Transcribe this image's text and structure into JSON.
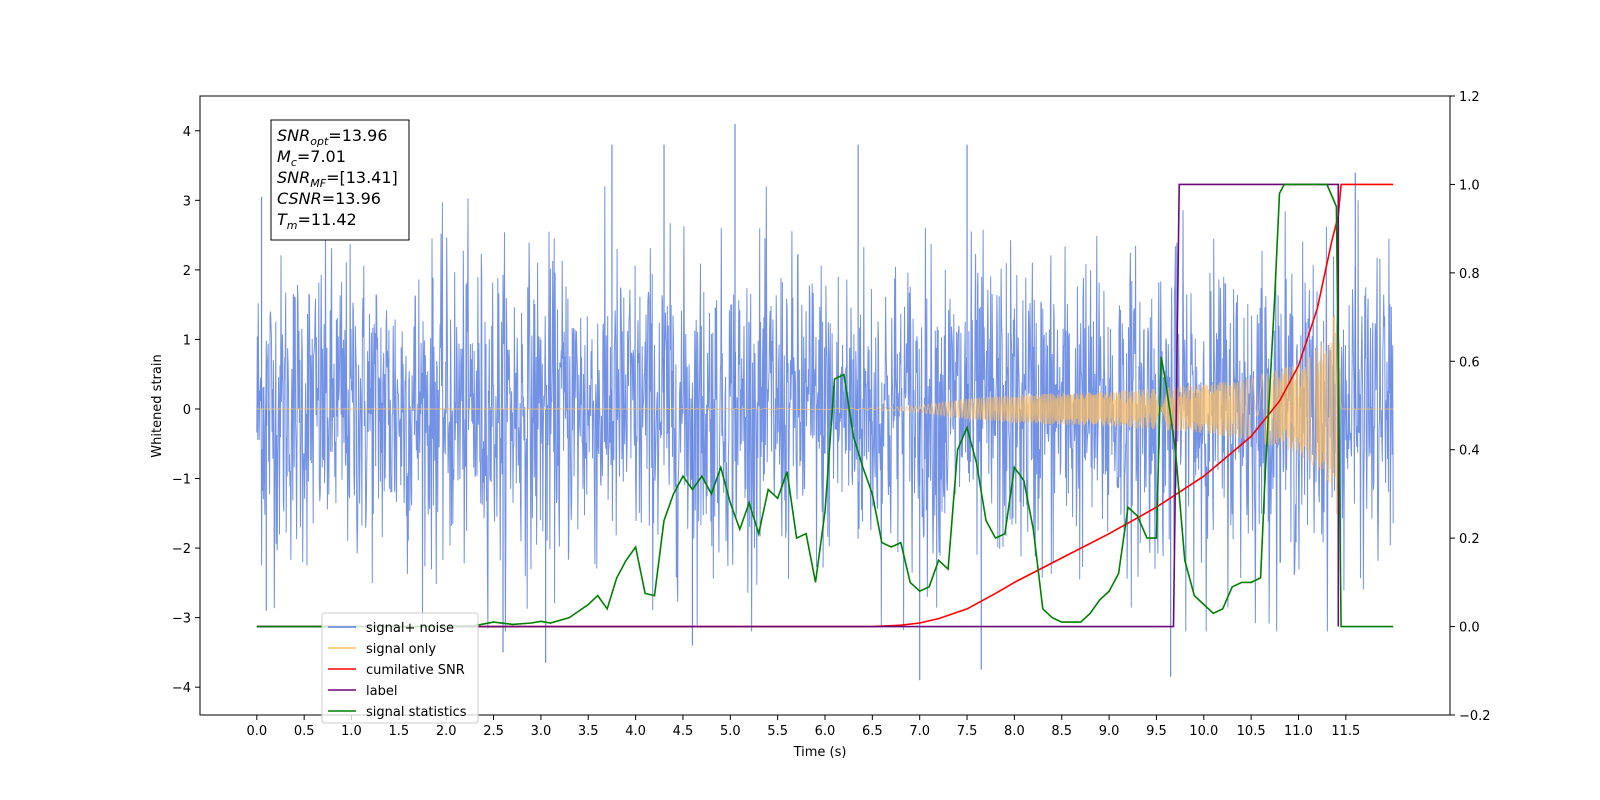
{
  "chart_data": {
    "type": "line",
    "xlabel": "Time (s)",
    "ylabel": "Whitened strain",
    "xlim": [
      -0.6,
      12.6
    ],
    "ylim": [
      -4.4,
      4.5
    ],
    "ylim_right": [
      -0.2,
      1.2
    ],
    "x_ticks": [
      "0.0",
      "0.5",
      "1.0",
      "1.5",
      "2.0",
      "2.5",
      "3.0",
      "3.5",
      "4.0",
      "4.5",
      "5.0",
      "5.5",
      "6.0",
      "6.5",
      "7.0",
      "7.5",
      "8.0",
      "8.5",
      "9.0",
      "9.5",
      "10.0",
      "10.5",
      "11.0",
      "11.5"
    ],
    "y_ticks_left": [
      "4",
      "3",
      "2",
      "1",
      "0",
      "−1",
      "−2",
      "−3",
      "−4"
    ],
    "y_ticks_right": [
      "1.2",
      "1.0",
      "0.8",
      "0.6",
      "0.4",
      "0.2",
      "0.0",
      "−0.2"
    ],
    "legend_position": "lower left",
    "legend": [
      {
        "label": "signal+ noise",
        "color": "#5b7fe0"
      },
      {
        "label": "signal only",
        "color": "#ffbf60"
      },
      {
        "label": "cumilative SNR",
        "color": "#ff0000"
      },
      {
        "label": "label",
        "color": "#6a0a7a"
      },
      {
        "label": "signal statistics",
        "color": "#008000"
      }
    ],
    "annotation": {
      "lines": [
        {
          "base": "SNR",
          "sub": "opt",
          "value": "=13.96"
        },
        {
          "base": "M",
          "sub": "c",
          "value": "=7.01"
        },
        {
          "base": "SNR",
          "sub": "MF",
          "value": "=[13.41]"
        },
        {
          "base": "CSNR",
          "sub": "",
          "value": "=13.96"
        },
        {
          "base": "T",
          "sub": "m",
          "value": "=11.42"
        }
      ]
    },
    "series": [
      {
        "name": "signal+ noise",
        "axis": "left",
        "color": "#5b7fe0",
        "kind": "noise",
        "x_range": [
          0.0,
          12.0
        ],
        "typical_envelope": [
          -2.4,
          2.4
        ],
        "peaks": [
          [
            5.05,
            4.1
          ],
          [
            3.75,
            3.8
          ],
          [
            4.3,
            3.8
          ],
          [
            6.35,
            3.8
          ],
          [
            7.5,
            3.8
          ],
          [
            11.6,
            3.4
          ],
          [
            7.0,
            -3.9
          ],
          [
            7.65,
            -3.75
          ],
          [
            9.65,
            -3.85
          ],
          [
            4.6,
            -3.4
          ],
          [
            3.05,
            -3.65
          ],
          [
            2.6,
            -3.5
          ],
          [
            0.05,
            3.05
          ],
          [
            0.1,
            -2.9
          ]
        ]
      },
      {
        "name": "signal only",
        "axis": "left",
        "color": "#ffbf60",
        "kind": "chirp",
        "merger_time": 11.42,
        "amplitude_at": [
          [
            0.0,
            0.0
          ],
          [
            6.5,
            0.01
          ],
          [
            7.0,
            0.05
          ],
          [
            7.5,
            0.15
          ],
          [
            8.0,
            0.2
          ],
          [
            9.0,
            0.25
          ],
          [
            10.0,
            0.35
          ],
          [
            10.5,
            0.45
          ],
          [
            11.0,
            0.65
          ],
          [
            11.3,
            1.0
          ],
          [
            11.42,
            1.6
          ],
          [
            11.45,
            0.0
          ],
          [
            12.0,
            0.0
          ]
        ]
      },
      {
        "name": "cumilative SNR",
        "axis": "right",
        "color": "#ff0000",
        "x": [
          0.0,
          6.5,
          6.8,
          7.0,
          7.2,
          7.5,
          7.8,
          8.0,
          8.5,
          9.0,
          9.5,
          10.0,
          10.5,
          10.8,
          11.0,
          11.2,
          11.35,
          11.42,
          11.45,
          12.0
        ],
        "y": [
          0.0,
          0.0,
          0.003,
          0.008,
          0.018,
          0.04,
          0.075,
          0.1,
          0.155,
          0.21,
          0.27,
          0.34,
          0.43,
          0.51,
          0.59,
          0.72,
          0.87,
          0.93,
          1.0,
          1.0
        ]
      },
      {
        "name": "label",
        "axis": "right",
        "color": "#6a0a7a",
        "x": [
          0.0,
          9.68,
          9.74,
          11.42,
          11.42
        ],
        "y": [
          0.0,
          0.0,
          1.0,
          1.0,
          0.0
        ]
      },
      {
        "name": "signal statistics",
        "axis": "right",
        "color": "#008000",
        "x": [
          0.0,
          2.0,
          2.3,
          2.5,
          2.7,
          2.9,
          3.0,
          3.1,
          3.3,
          3.5,
          3.6,
          3.7,
          3.8,
          3.9,
          4.0,
          4.1,
          4.2,
          4.3,
          4.4,
          4.5,
          4.6,
          4.7,
          4.8,
          4.9,
          5.0,
          5.1,
          5.2,
          5.3,
          5.4,
          5.5,
          5.6,
          5.7,
          5.8,
          5.9,
          6.0,
          6.1,
          6.2,
          6.3,
          6.4,
          6.5,
          6.6,
          6.7,
          6.8,
          6.9,
          7.0,
          7.1,
          7.2,
          7.3,
          7.4,
          7.5,
          7.6,
          7.7,
          7.8,
          7.9,
          8.0,
          8.1,
          8.2,
          8.3,
          8.4,
          8.5,
          8.6,
          8.7,
          8.8,
          8.9,
          9.0,
          9.1,
          9.2,
          9.3,
          9.4,
          9.5,
          9.55,
          9.6,
          9.7,
          9.8,
          9.9,
          10.0,
          10.1,
          10.2,
          10.3,
          10.4,
          10.5,
          10.6,
          10.65,
          10.7,
          10.75,
          10.8,
          10.85,
          10.9,
          11.0,
          11.3,
          11.4,
          11.45,
          12.0
        ],
        "y": [
          0.0,
          0.0,
          0.002,
          0.01,
          0.005,
          0.008,
          0.012,
          0.008,
          0.02,
          0.05,
          0.07,
          0.04,
          0.11,
          0.15,
          0.18,
          0.075,
          0.07,
          0.24,
          0.3,
          0.34,
          0.31,
          0.34,
          0.3,
          0.36,
          0.28,
          0.22,
          0.28,
          0.21,
          0.31,
          0.29,
          0.35,
          0.2,
          0.21,
          0.1,
          0.26,
          0.56,
          0.57,
          0.43,
          0.36,
          0.3,
          0.19,
          0.18,
          0.19,
          0.1,
          0.08,
          0.09,
          0.15,
          0.13,
          0.4,
          0.45,
          0.37,
          0.24,
          0.2,
          0.21,
          0.36,
          0.33,
          0.22,
          0.04,
          0.02,
          0.01,
          0.01,
          0.01,
          0.03,
          0.06,
          0.08,
          0.12,
          0.27,
          0.25,
          0.2,
          0.2,
          0.61,
          0.55,
          0.4,
          0.15,
          0.07,
          0.05,
          0.03,
          0.04,
          0.09,
          0.1,
          0.1,
          0.11,
          0.35,
          0.55,
          0.75,
          0.98,
          1.0,
          1.0,
          1.0,
          1.0,
          0.95,
          0.0,
          0.0
        ]
      }
    ]
  }
}
